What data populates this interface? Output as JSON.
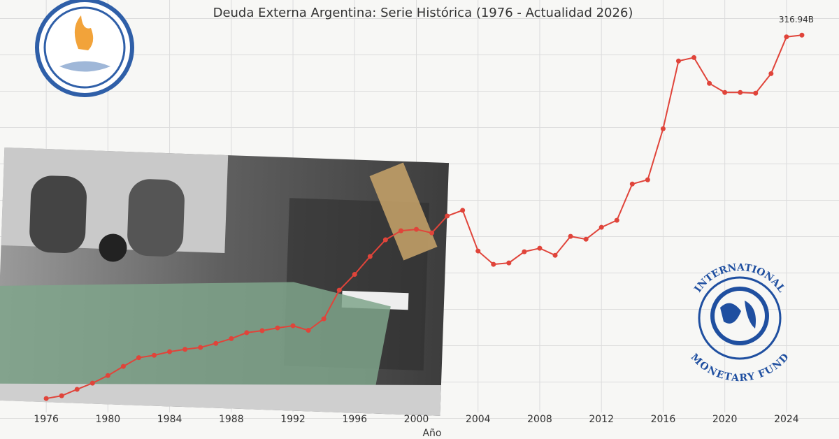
{
  "chart_data": {
    "type": "line",
    "title": "Deuda Externa Argentina: Serie Histórica (1976 - Actualidad 2026)",
    "x_label": "Año",
    "x": [
      1976,
      1977,
      1978,
      1979,
      1980,
      1981,
      1982,
      1983,
      1984,
      1985,
      1986,
      1987,
      1988,
      1989,
      1990,
      1991,
      1992,
      1993,
      1994,
      1995,
      1996,
      1997,
      1998,
      1999,
      2000,
      2001,
      2002,
      2003,
      2004,
      2005,
      2006,
      2007,
      2008,
      2009,
      2010,
      2011,
      2012,
      2013,
      2014,
      2015,
      2016,
      2017,
      2018,
      2019,
      2020,
      2021,
      2022,
      2023,
      2024,
      2025
    ],
    "series": [
      {
        "color": "#e0443a",
        "values": [
          11.7,
          14,
          19.4,
          24.6,
          31,
          38.7,
          46,
          48,
          51,
          53,
          54.6,
          58,
          62,
          67,
          68.7,
          71,
          72.8,
          69,
          78.6,
          102.7,
          116,
          131,
          145,
          152.6,
          153.8,
          150.8,
          165,
          169.8,
          135.6,
          124.4,
          125.6,
          135,
          137.9,
          132,
          147.9,
          145.5,
          155.5,
          161.4,
          191.9,
          195.4,
          238.3,
          295.2,
          298.1,
          276.4,
          268.8,
          268.8,
          268.2,
          284.6,
          315.5,
          316.94
        ],
        "value_labels": {
          "49": "316.94B"
        }
      }
    ],
    "xlim": [
      1974,
      2026
    ],
    "xticks": [
      1976,
      1980,
      1984,
      1988,
      1992,
      1996,
      2000,
      2004,
      2008,
      2012,
      2016,
      2020,
      2024
    ],
    "ylim": [
      0,
      330
    ],
    "grid": true
  },
  "logos": {
    "imf_top": "INTERNATIONAL",
    "imf_bottom": "MONETARY FUND"
  }
}
